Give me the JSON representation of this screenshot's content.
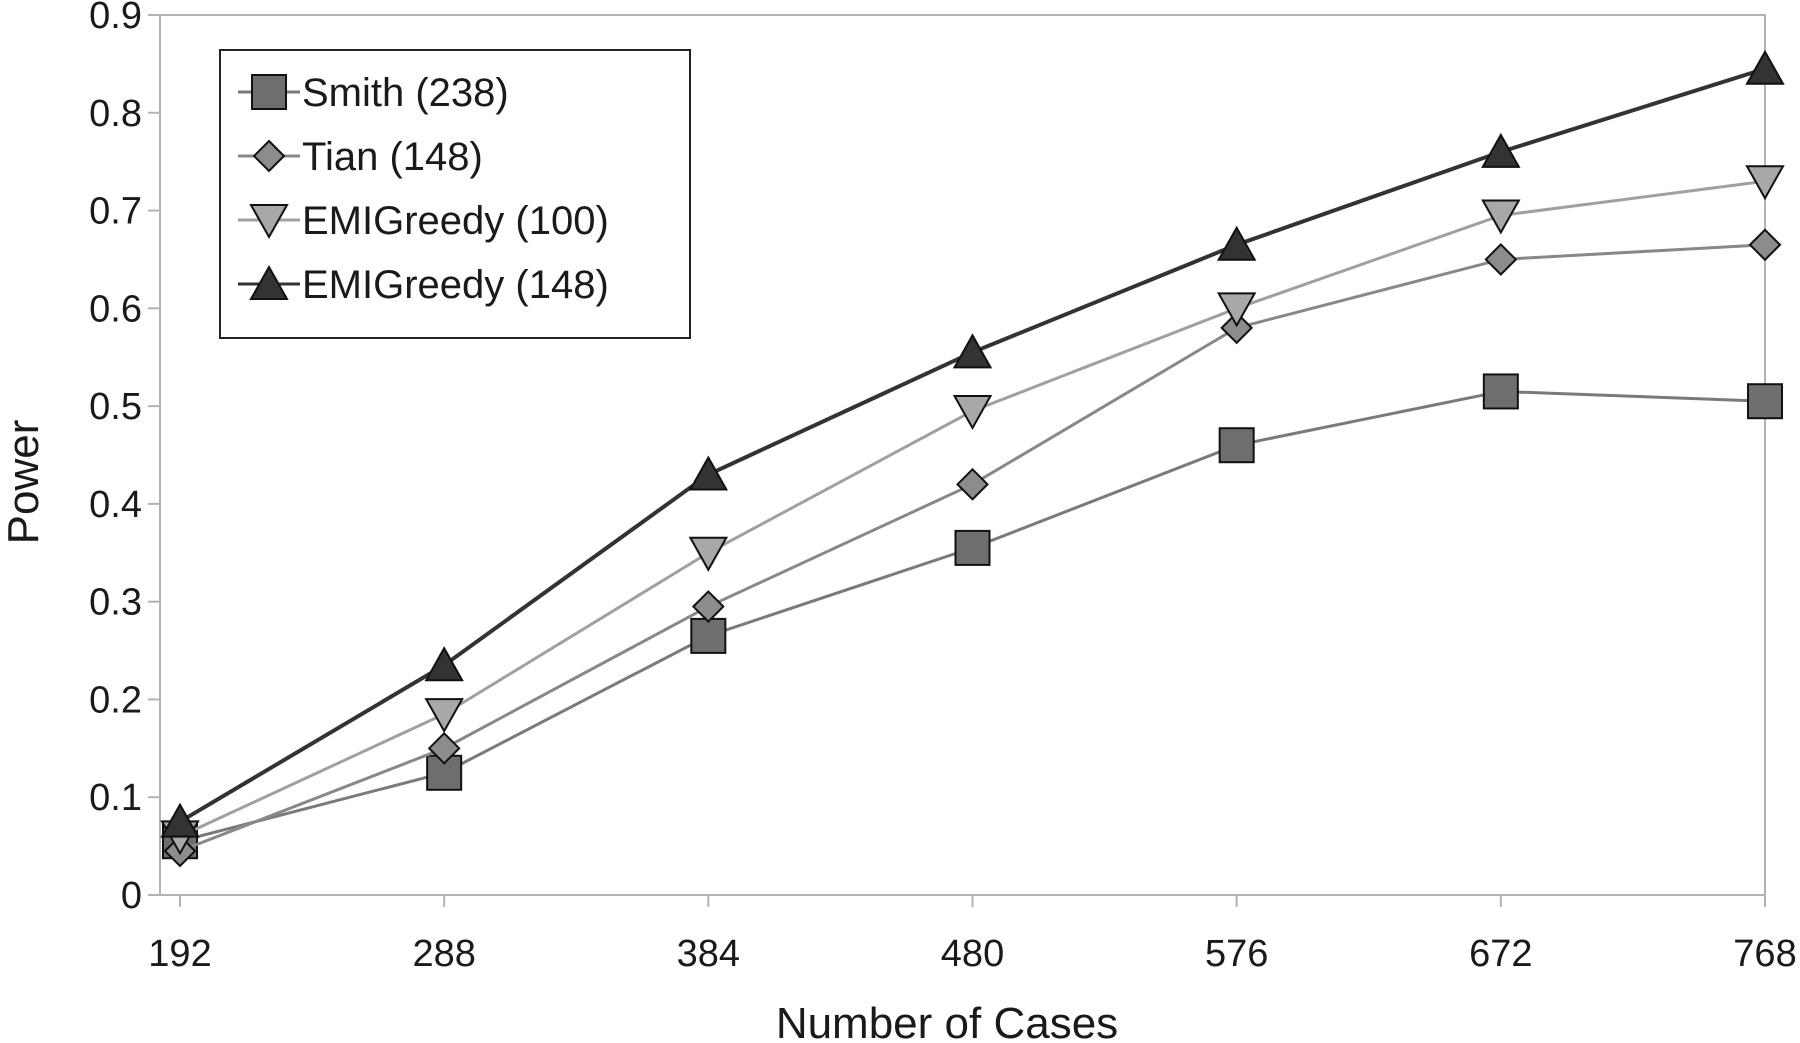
{
  "chart_data": {
    "type": "line",
    "title": "",
    "xlabel": "Number of Cases",
    "ylabel": "Power",
    "x": [
      192,
      288,
      384,
      480,
      576,
      672,
      768
    ],
    "x_tick_labels": [
      "192",
      "288",
      "384",
      "480",
      "576",
      "672",
      "768"
    ],
    "ylim": [
      0,
      0.9
    ],
    "y_ticks": [
      0,
      0.1,
      0.2,
      0.3,
      0.4,
      0.5,
      0.6,
      0.7,
      0.8,
      0.9
    ],
    "y_tick_labels": [
      "0",
      "0.1",
      "0.2",
      "0.3",
      "0.4",
      "0.5",
      "0.6",
      "0.7",
      "0.8",
      "0.9"
    ],
    "grid": false,
    "legend_position": "top-left",
    "series": [
      {
        "name": "Smith (238)",
        "marker": "square",
        "color": "#6e6e6e",
        "line_color": "#7a7a7a",
        "values": [
          0.055,
          0.125,
          0.265,
          0.355,
          0.46,
          0.515,
          0.505
        ]
      },
      {
        "name": "Tian (148)",
        "marker": "diamond",
        "color": "#8c8c8c",
        "line_color": "#888888",
        "values": [
          0.045,
          0.15,
          0.295,
          0.42,
          0.58,
          0.65,
          0.665
        ]
      },
      {
        "name": "EMIGreedy (100)",
        "marker": "triangle-down",
        "color": "#a8a8a8",
        "line_color": "#a0a0a0",
        "values": [
          0.06,
          0.185,
          0.35,
          0.495,
          0.6,
          0.695,
          0.73
        ]
      },
      {
        "name": "EMIGreedy (148)",
        "marker": "triangle-up",
        "color": "#333333",
        "line_color": "#333333",
        "values": [
          0.075,
          0.235,
          0.43,
          0.555,
          0.665,
          0.76,
          0.845
        ]
      }
    ]
  }
}
